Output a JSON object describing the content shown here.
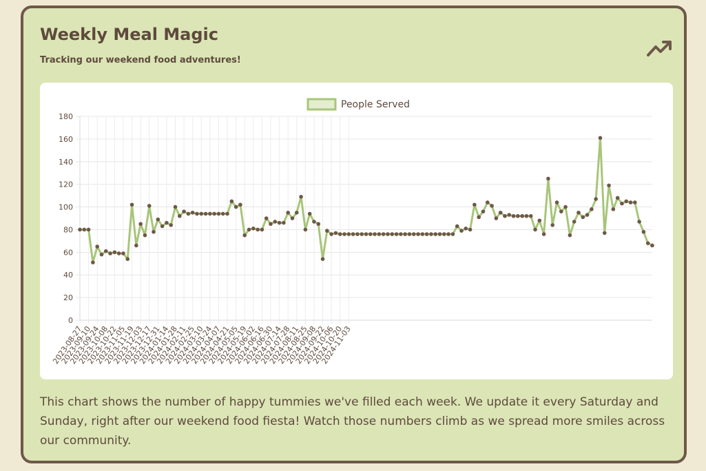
{
  "header": {
    "title": "Weekly Meal Magic",
    "subtitle": "Tracking our weekend food adventures!",
    "icon": "trending-up-icon"
  },
  "description": "This chart shows the number of happy tummies we've filled each week. We update it every Saturday and Sunday, right after our weekend food fiesta! Watch those numbers climb as we spread more smiles across our community.",
  "colors": {
    "background": "#f0ead4",
    "card": "#dce5b6",
    "border": "#6e5848",
    "line": "#a8c57a",
    "point": "#6e5848",
    "text": "#5e4a3d"
  },
  "chart_data": {
    "type": "line",
    "title": "",
    "xlabel": "",
    "ylabel": "",
    "ylim": [
      0,
      180
    ],
    "yticks": [
      0,
      20,
      40,
      60,
      80,
      100,
      120,
      140,
      160,
      180
    ],
    "grid": true,
    "legend": "top-center",
    "x_tick_labels": [
      "2023-08-27",
      "2023-09-10",
      "2023-09-24",
      "2023-10-08",
      "2023-10-22",
      "2023-11-05",
      "2023-11-19",
      "2023-12-03",
      "2023-12-17",
      "2023-12-31",
      "2024-01-14",
      "2024-01-28",
      "2024-02-11",
      "2024-02-25",
      "2024-03-10",
      "2024-03-24",
      "2024-04-07",
      "2024-04-21",
      "2024-05-05",
      "2024-05-19",
      "2024-06-02",
      "2024-06-16",
      "2024-06-30",
      "2024-07-14",
      "2024-07-28",
      "2024-08-11",
      "2024-08-25",
      "2024-09-08",
      "2024-09-22",
      "2024-10-06",
      "2024-10-20",
      "2024-11-03"
    ],
    "series": [
      {
        "name": "People Served",
        "values": [
          80,
          80,
          80,
          51,
          65,
          58,
          61,
          59,
          60,
          59,
          59,
          54,
          102,
          66,
          85,
          75,
          101,
          78,
          89,
          83,
          86,
          84,
          100,
          92,
          96,
          94,
          95,
          94,
          94,
          94,
          94,
          94,
          94,
          94,
          94,
          105,
          100,
          102,
          75,
          80,
          81,
          80,
          80,
          90,
          85,
          87,
          86,
          86,
          95,
          90,
          95,
          109,
          80,
          94,
          87,
          85,
          54,
          79,
          76,
          77,
          76,
          76,
          76,
          76,
          76,
          76,
          76,
          76,
          76,
          76,
          76,
          76,
          76,
          76,
          76,
          76,
          76,
          76,
          76,
          76,
          76,
          76,
          76,
          76,
          76,
          76,
          76,
          83,
          79,
          81,
          80,
          102,
          91,
          96,
          104,
          101,
          90,
          95,
          92,
          93,
          92,
          92,
          92,
          92,
          92,
          80,
          88,
          76,
          125,
          84,
          104,
          96,
          100,
          75,
          87,
          95,
          91,
          93,
          98,
          107,
          161,
          77,
          119,
          98,
          108,
          103,
          105,
          104,
          104,
          87,
          78,
          68,
          66
        ]
      }
    ]
  }
}
